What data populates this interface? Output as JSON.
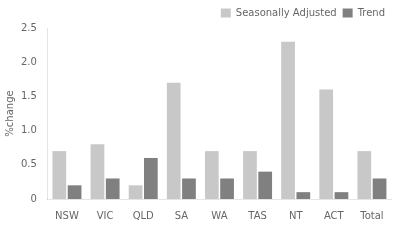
{
  "chart_data": {
    "type": "bar",
    "categories": [
      "NSW",
      "VIC",
      "QLD",
      "SA",
      "WA",
      "TAS",
      "NT",
      "ACT",
      "Total"
    ],
    "series": [
      {
        "name": "Seasonally Adjusted",
        "color": "#c8c8c8",
        "values": [
          0.7,
          0.8,
          0.2,
          1.7,
          0.7,
          0.7,
          2.3,
          1.6,
          0.7
        ]
      },
      {
        "name": "Trend",
        "color": "#808080",
        "values": [
          0.2,
          0.3,
          0.6,
          0.3,
          0.3,
          0.4,
          0.1,
          0.1,
          0.3
        ]
      }
    ],
    "ylabel": "%change",
    "ylim": [
      0,
      2.5
    ],
    "yticks": [
      0,
      0.5,
      {
        "value": 1.0,
        "label": "1.0"
      },
      1.5,
      {
        "value": 2.0,
        "label": "2.0"
      },
      2.5
    ],
    "grid": false,
    "legend": "upper right"
  }
}
